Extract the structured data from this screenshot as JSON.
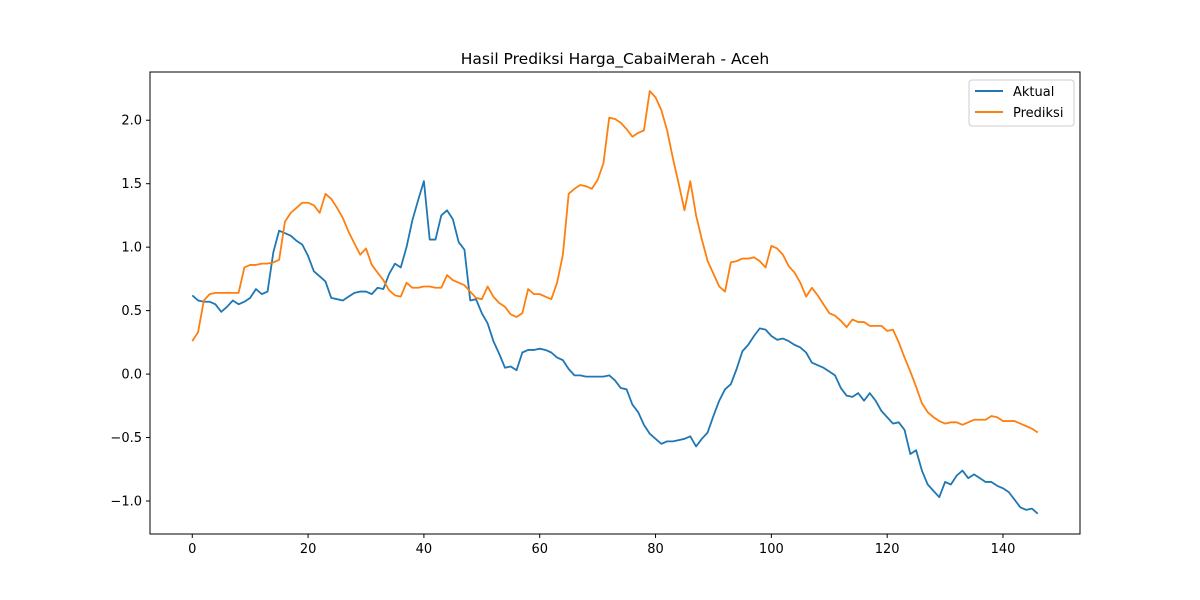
{
  "chart_data": {
    "type": "line",
    "title": "Hasil Prediksi Harga_CabaiMerah - Aceh",
    "xlabel": "",
    "ylabel": "",
    "xlim": [
      -7.3,
      153.3
    ],
    "ylim": [
      -1.26,
      2.38
    ],
    "x_ticks": [
      0,
      20,
      40,
      60,
      80,
      100,
      120,
      140
    ],
    "y_ticks": [
      -1.0,
      -0.5,
      0.0,
      0.5,
      1.0,
      1.5,
      2.0
    ],
    "y_tick_labels": [
      "−1.0",
      "−0.5",
      "0.0",
      "0.5",
      "1.0",
      "1.5",
      "2.0"
    ],
    "grid": false,
    "legend": "top-right",
    "series": [
      {
        "name": "Aktual",
        "color": "#1f77b4",
        "values": [
          0.62,
          0.58,
          0.57,
          0.57,
          0.55,
          0.49,
          0.53,
          0.58,
          0.55,
          0.57,
          0.6,
          0.67,
          0.63,
          0.65,
          0.96,
          1.13,
          1.11,
          1.09,
          1.05,
          1.02,
          0.93,
          0.81,
          0.77,
          0.73,
          0.6,
          0.59,
          0.58,
          0.61,
          0.64,
          0.65,
          0.65,
          0.63,
          0.68,
          0.67,
          0.79,
          0.87,
          0.84,
          1.0,
          1.21,
          1.37,
          1.52,
          1.06,
          1.06,
          1.25,
          1.29,
          1.22,
          1.04,
          0.98,
          0.58,
          0.59,
          0.48,
          0.4,
          0.26,
          0.16,
          0.05,
          0.06,
          0.03,
          0.17,
          0.19,
          0.19,
          0.2,
          0.19,
          0.17,
          0.13,
          0.11,
          0.04,
          -0.01,
          -0.01,
          -0.02,
          -0.02,
          -0.02,
          -0.02,
          -0.01,
          -0.05,
          -0.11,
          -0.12,
          -0.24,
          -0.3,
          -0.4,
          -0.47,
          -0.51,
          -0.55,
          -0.53,
          -0.53,
          -0.52,
          -0.51,
          -0.49,
          -0.57,
          -0.51,
          -0.46,
          -0.33,
          -0.21,
          -0.12,
          -0.08,
          0.04,
          0.18,
          0.23,
          0.3,
          0.36,
          0.35,
          0.3,
          0.27,
          0.28,
          0.26,
          0.23,
          0.21,
          0.17,
          0.09,
          0.07,
          0.05,
          0.02,
          -0.01,
          -0.11,
          -0.17,
          -0.18,
          -0.15,
          -0.21,
          -0.15,
          -0.21,
          -0.29,
          -0.34,
          -0.39,
          -0.38,
          -0.44,
          -0.63,
          -0.6,
          -0.76,
          -0.87,
          -0.92,
          -0.97,
          -0.85,
          -0.87,
          -0.8,
          -0.76,
          -0.82,
          -0.79,
          -0.82,
          -0.85,
          -0.85,
          -0.88,
          -0.9,
          -0.93,
          -0.99,
          -1.05,
          -1.07,
          -1.06,
          -1.1
        ]
      },
      {
        "name": "Prediksi",
        "color": "#ff7f0e",
        "values": [
          0.26,
          0.33,
          0.58,
          0.63,
          0.64,
          0.64,
          0.64,
          0.64,
          0.64,
          0.84,
          0.86,
          0.86,
          0.87,
          0.87,
          0.88,
          0.9,
          1.2,
          1.27,
          1.31,
          1.35,
          1.35,
          1.33,
          1.27,
          1.42,
          1.38,
          1.31,
          1.23,
          1.12,
          1.03,
          0.94,
          0.99,
          0.86,
          0.8,
          0.74,
          0.66,
          0.62,
          0.61,
          0.72,
          0.68,
          0.68,
          0.69,
          0.69,
          0.68,
          0.68,
          0.78,
          0.74,
          0.72,
          0.7,
          0.65,
          0.6,
          0.59,
          0.69,
          0.61,
          0.56,
          0.53,
          0.47,
          0.45,
          0.48,
          0.67,
          0.63,
          0.63,
          0.61,
          0.59,
          0.72,
          0.94,
          1.42,
          1.46,
          1.49,
          1.48,
          1.46,
          1.53,
          1.66,
          2.02,
          2.01,
          1.98,
          1.93,
          1.87,
          1.9,
          1.92,
          2.23,
          2.18,
          2.08,
          1.92,
          1.7,
          1.5,
          1.29,
          1.52,
          1.25,
          1.06,
          0.89,
          0.79,
          0.69,
          0.65,
          0.88,
          0.89,
          0.91,
          0.91,
          0.92,
          0.89,
          0.84,
          1.01,
          0.99,
          0.94,
          0.85,
          0.8,
          0.72,
          0.61,
          0.68,
          0.62,
          0.55,
          0.48,
          0.46,
          0.42,
          0.37,
          0.43,
          0.41,
          0.41,
          0.38,
          0.38,
          0.38,
          0.34,
          0.35,
          0.25,
          0.13,
          0.02,
          -0.1,
          -0.23,
          -0.3,
          -0.34,
          -0.37,
          -0.39,
          -0.38,
          -0.38,
          -0.4,
          -0.38,
          -0.36,
          -0.36,
          -0.36,
          -0.33,
          -0.34,
          -0.37,
          -0.37,
          -0.37,
          -0.39,
          -0.41,
          -0.43,
          -0.46
        ]
      }
    ]
  }
}
